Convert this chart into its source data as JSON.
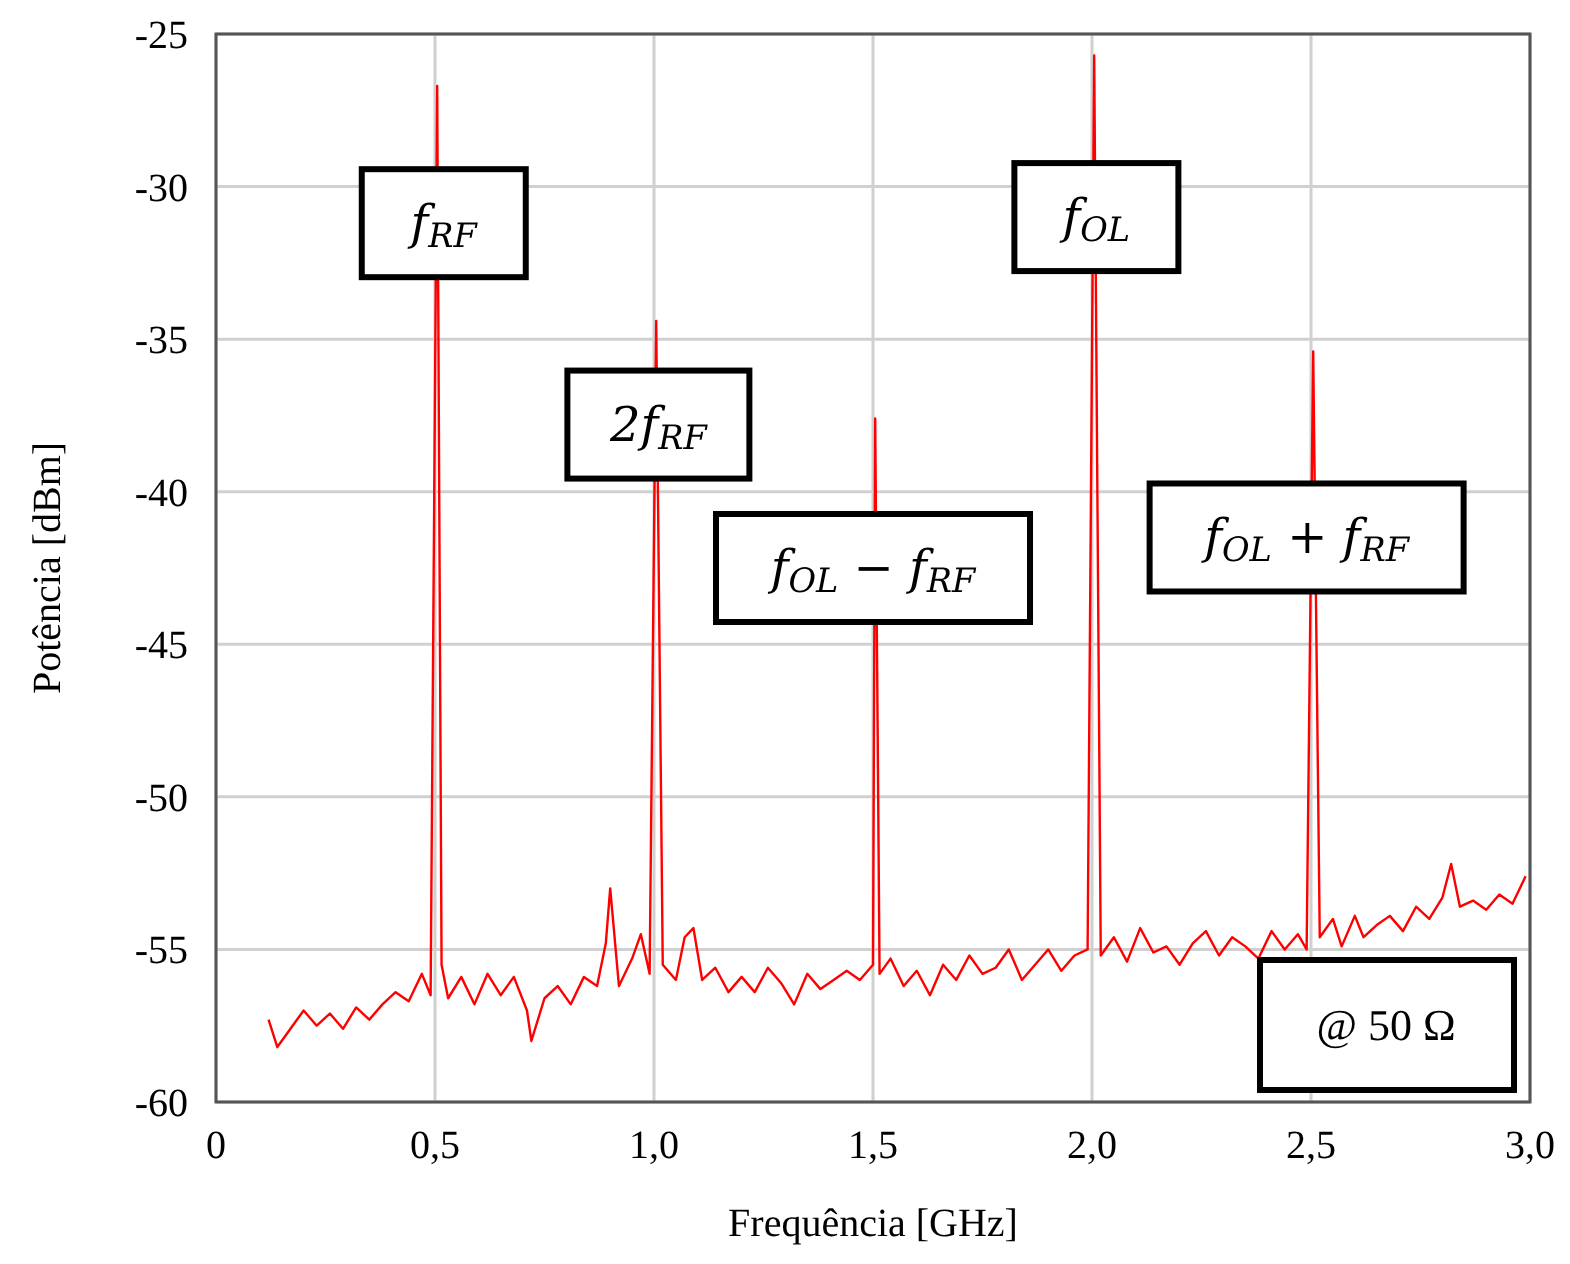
{
  "chart_data": {
    "type": "line",
    "xlabel": "Frequência [GHz]",
    "ylabel": "Potência [dBm]",
    "xlim": [
      0,
      3
    ],
    "xticks": [
      0,
      {
        "value": 0.5,
        "label": "0,5"
      },
      {
        "value": 1,
        "label": "1,0"
      },
      {
        "value": 1.5,
        "label": "1,5"
      },
      {
        "value": 2,
        "label": "2,0"
      },
      {
        "value": 2.5,
        "label": "2,5"
      },
      {
        "value": 3,
        "label": "3,0"
      }
    ],
    "ylim": [
      -60,
      -25
    ],
    "yticks": [
      -60,
      -55,
      -50,
      -45,
      -40,
      -35,
      -30,
      -25
    ],
    "grid": true,
    "series": [
      {
        "color": "#ff0000",
        "x": [
          0.12,
          0.14,
          0.17,
          0.2,
          0.23,
          0.26,
          0.29,
          0.32,
          0.35,
          0.38,
          0.41,
          0.44,
          0.47,
          0.49,
          0.505,
          0.515,
          0.53,
          0.56,
          0.59,
          0.62,
          0.65,
          0.68,
          0.71,
          0.72,
          0.75,
          0.78,
          0.81,
          0.84,
          0.87,
          0.89,
          0.9,
          0.92,
          0.95,
          0.97,
          0.99,
          1.005,
          1.02,
          1.05,
          1.07,
          1.09,
          1.11,
          1.14,
          1.17,
          1.2,
          1.23,
          1.26,
          1.29,
          1.32,
          1.35,
          1.38,
          1.41,
          1.44,
          1.47,
          1.5,
          1.505,
          1.515,
          1.54,
          1.57,
          1.6,
          1.63,
          1.66,
          1.69,
          1.72,
          1.75,
          1.78,
          1.81,
          1.84,
          1.87,
          1.9,
          1.93,
          1.96,
          1.99,
          2.005,
          2.02,
          2.05,
          2.08,
          2.11,
          2.14,
          2.17,
          2.2,
          2.23,
          2.26,
          2.29,
          2.32,
          2.35,
          2.38,
          2.41,
          2.44,
          2.47,
          2.49,
          2.505,
          2.52,
          2.55,
          2.57,
          2.6,
          2.62,
          2.65,
          2.68,
          2.71,
          2.74,
          2.77,
          2.8,
          2.82,
          2.84,
          2.87,
          2.9,
          2.93,
          2.96,
          2.99
        ],
        "values": [
          -57.3,
          -58.2,
          -57.6,
          -57.0,
          -57.5,
          -57.1,
          -57.6,
          -56.9,
          -57.3,
          -56.8,
          -56.4,
          -56.7,
          -55.8,
          -56.5,
          -26.7,
          -55.5,
          -56.6,
          -55.9,
          -56.8,
          -55.8,
          -56.5,
          -55.9,
          -57.0,
          -58.0,
          -56.6,
          -56.2,
          -56.8,
          -55.9,
          -56.2,
          -54.8,
          -53.0,
          -56.2,
          -55.3,
          -54.5,
          -55.8,
          -34.4,
          -55.5,
          -56.0,
          -54.6,
          -54.3,
          -56.0,
          -55.6,
          -56.4,
          -55.9,
          -56.4,
          -55.6,
          -56.1,
          -56.8,
          -55.8,
          -56.3,
          -56.0,
          -55.7,
          -56.0,
          -55.5,
          -37.6,
          -55.8,
          -55.3,
          -56.2,
          -55.7,
          -56.5,
          -55.5,
          -56.0,
          -55.2,
          -55.8,
          -55.6,
          -55.0,
          -56.0,
          -55.5,
          -55.0,
          -55.7,
          -55.2,
          -55.0,
          -25.7,
          -55.2,
          -54.6,
          -55.4,
          -54.3,
          -55.1,
          -54.9,
          -55.5,
          -54.8,
          -54.4,
          -55.2,
          -54.6,
          -54.9,
          -55.3,
          -54.4,
          -55.0,
          -54.5,
          -55.0,
          -35.4,
          -54.6,
          -54.0,
          -54.9,
          -53.9,
          -54.6,
          -54.2,
          -53.9,
          -54.4,
          -53.6,
          -54.0,
          -53.3,
          -52.2,
          -53.6,
          -53.4,
          -53.7,
          -53.2,
          -53.5,
          -52.6
        ]
      }
    ],
    "annotations": [
      {
        "text": "f$_{RF}$",
        "x": 0.52,
        "y": -31.2
      },
      {
        "text": "2f$_{RF}$",
        "x": 1.01,
        "y": -37.8
      },
      {
        "text": "f$_{OL}$ − f$_{RF}$",
        "x": 1.5,
        "y": -42.5
      },
      {
        "text": "f$_{OL}$",
        "x": 2.01,
        "y": -31.0
      },
      {
        "text": "f$_{OL}$ + f$_{RF}$",
        "x": 2.49,
        "y": -41.5
      },
      "@ 50 Ω"
    ]
  }
}
